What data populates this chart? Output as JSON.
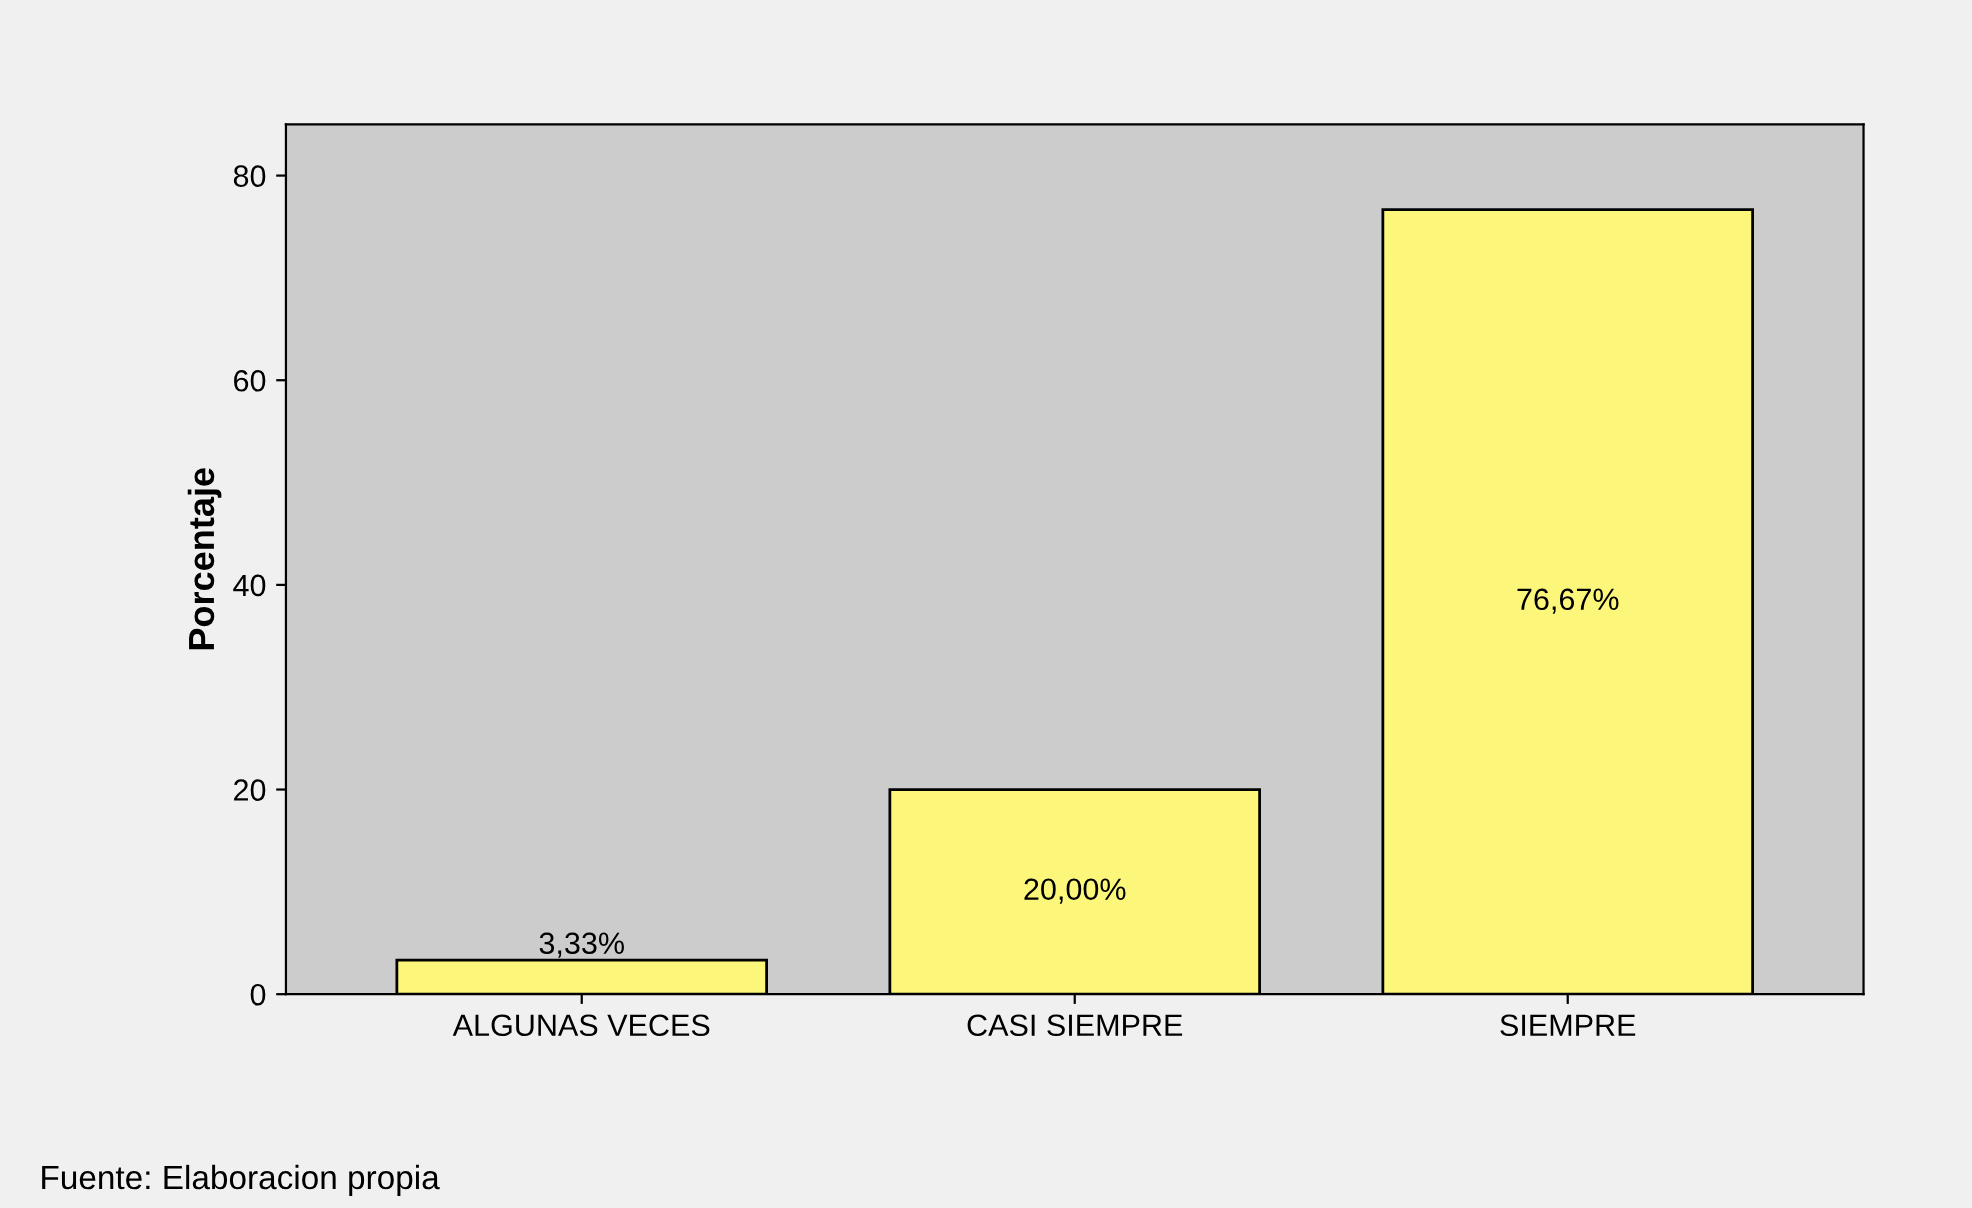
{
  "chart_data": {
    "type": "bar",
    "ylabel": "Porcentaje",
    "categories": [
      "ALGUNAS VECES",
      "CASI SIEMPRE",
      "SIEMPRE"
    ],
    "values": [
      3.33,
      20.0,
      76.67
    ],
    "value_labels": [
      "3,33%",
      "20,00%",
      "76,67%"
    ],
    "color": "#fcf77a",
    "ylim": [
      0,
      85
    ],
    "yticks": [
      0,
      20,
      40,
      60,
      80
    ],
    "grid": false,
    "annotations": [
      "Fuente: Elaboracion propia"
    ]
  }
}
